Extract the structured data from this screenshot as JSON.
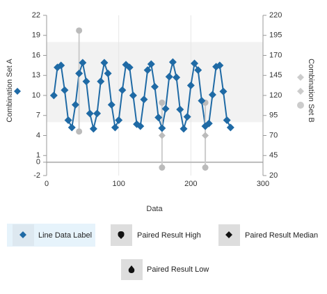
{
  "chart_data": {
    "type": "line",
    "x_label": "Data",
    "y_label": "Combination Set A",
    "y2_label": "Combination Set B",
    "xlim": [
      0,
      300
    ],
    "xticks": [
      0,
      100,
      200,
      300
    ],
    "ylim": [
      -2,
      22
    ],
    "yticks": [
      22,
      19,
      16,
      13,
      10,
      7,
      4,
      1,
      0,
      -2
    ],
    "y2lim": [
      20,
      220
    ],
    "y2ticks": [
      220,
      195,
      170,
      145,
      120,
      95,
      70,
      45,
      20
    ],
    "band": [
      6,
      18
    ],
    "series": [
      {
        "name": "Line Data Label",
        "color": "#1f6aa5",
        "x": [
          10,
          15,
          20,
          25,
          30,
          35,
          40,
          45,
          50,
          55,
          60,
          65,
          70,
          75,
          80,
          85,
          90,
          95,
          100,
          105,
          110,
          115,
          120,
          125,
          130,
          135,
          140,
          145,
          150,
          155,
          160,
          165,
          170,
          175,
          180,
          185,
          190,
          195,
          200,
          205,
          210,
          215,
          220,
          225,
          230,
          235,
          240,
          245,
          250,
          255
        ],
        "values": [
          10,
          14.2,
          14.5,
          10.8,
          6.3,
          5.2,
          8.6,
          13.3,
          14.9,
          12.1,
          7.3,
          5,
          7.3,
          12.1,
          14.9,
          13.3,
          8.6,
          5.2,
          6.3,
          10.8,
          14.6,
          14.2,
          10,
          5.7,
          5.4,
          9.4,
          13.8,
          14.7,
          11.3,
          6.7,
          5.1,
          8,
          12.8,
          15,
          12.7,
          7.9,
          5,
          6.8,
          11.5,
          14.8,
          13.8,
          9.2,
          5.4,
          5.8,
          10.1,
          14.3,
          14.5,
          10.6,
          6.3,
          5.2
        ]
      },
      {
        "name": "Paired Result High",
        "color": "#bbbbbb",
        "axis": "y2",
        "x": [
          45,
          160,
          220
        ],
        "values": [
          201,
          111,
          111
        ]
      },
      {
        "name": "Paired Result Median",
        "color": "#bbbbbb",
        "axis": "y2",
        "x": [
          45,
          160,
          220
        ],
        "values": [
          147,
          70,
          70
        ]
      },
      {
        "name": "Paired Result Low",
        "color": "#bbbbbb",
        "axis": "y2",
        "x": [
          45,
          160,
          220
        ],
        "values": [
          75,
          30,
          30
        ]
      }
    ]
  }
}
